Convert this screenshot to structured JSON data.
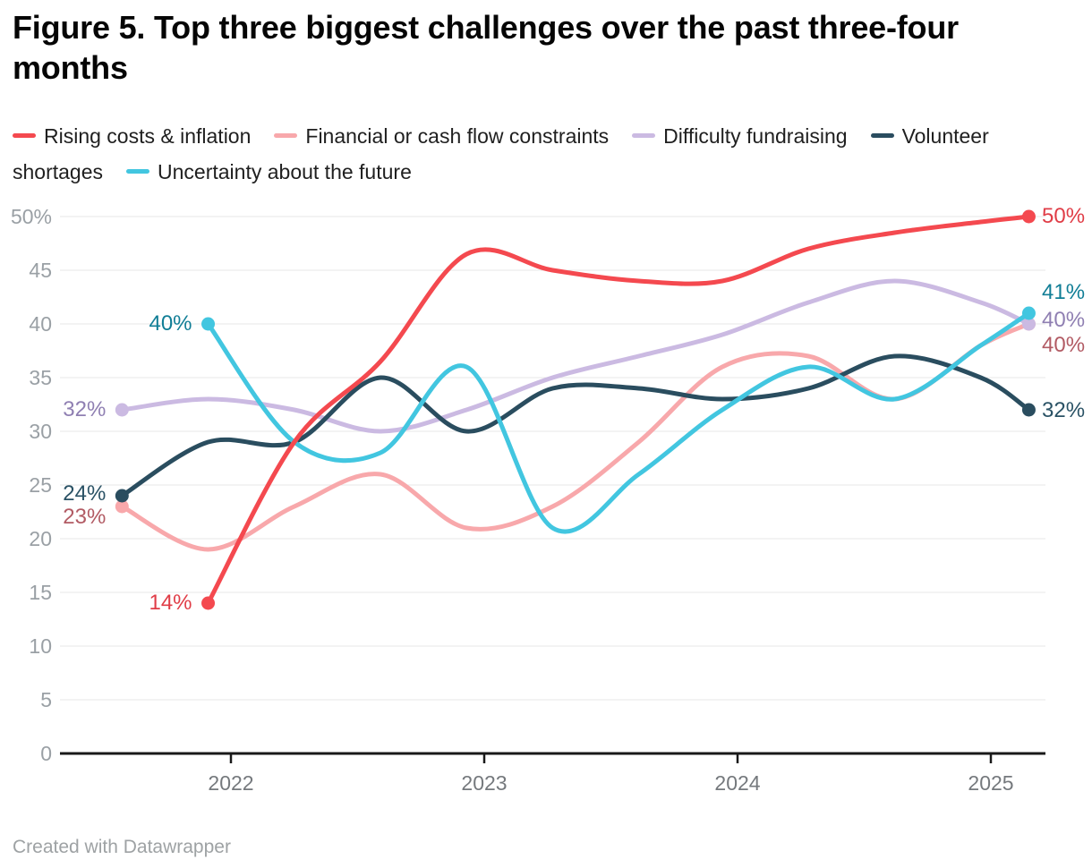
{
  "title": "Figure 5. Top three biggest challenges over the past three-four months",
  "attribution": "Created with Datawrapper",
  "legend": {
    "items": [
      {
        "id": "rising-costs",
        "label": "Rising costs & inflation",
        "color": "#f4494f"
      },
      {
        "id": "financial-constraints",
        "label": "Financial or cash flow constraints",
        "color": "#f8a8ab"
      },
      {
        "id": "difficulty-fundraising",
        "label": "Difficulty fundraising",
        "color": "#cbbae2"
      },
      {
        "id": "volunteer-shortages",
        "label": "Volunteer shortages",
        "color": "#2a4d5f"
      },
      {
        "id": "uncertainty-future",
        "label": "Uncertainty about the future",
        "color": "#42c6e0"
      }
    ]
  },
  "chart_data": {
    "type": "line",
    "title": "Figure 5. Top three biggest challenges over the past three-four months",
    "x_note": "x values are decimal years estimated from the axis; surveys roughly every 4 months",
    "x": [
      2021.57,
      2021.91,
      2022.25,
      2022.59,
      2022.93,
      2023.27,
      2023.61,
      2023.94,
      2024.28,
      2024.62,
      2024.96,
      2025.15
    ],
    "x_axis": {
      "ticks": [
        {
          "label": "2022",
          "value": 2022
        },
        {
          "label": "2023",
          "value": 2023
        },
        {
          "label": "2024",
          "value": 2024
        },
        {
          "label": "2025",
          "value": 2025
        }
      ]
    },
    "y_axis": {
      "min": 0,
      "max": 50,
      "ticks": [
        {
          "label": "50%",
          "value": 50
        },
        {
          "label": "45",
          "value": 45
        },
        {
          "label": "40",
          "value": 40
        },
        {
          "label": "35",
          "value": 35
        },
        {
          "label": "30",
          "value": 30
        },
        {
          "label": "25",
          "value": 25
        },
        {
          "label": "20",
          "value": 20
        },
        {
          "label": "15",
          "value": 15
        },
        {
          "label": "10",
          "value": 10
        },
        {
          "label": "5",
          "value": 5
        },
        {
          "label": "0",
          "value": 0
        }
      ]
    },
    "grid": "horizontal",
    "legend_position": "top",
    "series": [
      {
        "id": "rising-costs",
        "name": "Rising costs & inflation",
        "color": "#f4494f",
        "label_color": "#e03d47",
        "values": [
          null,
          14,
          29,
          36.5,
          46.5,
          45,
          44,
          44,
          47,
          48.5,
          49.5,
          50
        ],
        "start_label": "14%",
        "end_label": "50%"
      },
      {
        "id": "financial-constraints",
        "name": "Financial or cash flow constraints",
        "color": "#f8a8ab",
        "label_color": "#b25b64",
        "values": [
          23,
          19,
          23,
          26,
          21,
          23,
          29,
          36,
          37,
          33,
          38,
          40
        ],
        "start_label": "23%",
        "end_label": "40%"
      },
      {
        "id": "difficulty-fundraising",
        "name": "Difficulty fundraising",
        "color": "#cbbae2",
        "label_color": "#8f7fb2",
        "values": [
          32,
          33,
          32,
          30,
          32,
          35,
          37,
          39,
          42,
          44,
          42,
          40
        ],
        "start_label": "32%",
        "end_label": "40%"
      },
      {
        "id": "volunteer-shortages",
        "name": "Volunteer shortages",
        "color": "#2a4d5f",
        "label_color": "#2a5265",
        "values": [
          24,
          29,
          29,
          35,
          30,
          34,
          34,
          33,
          34,
          37,
          35,
          32
        ],
        "start_label": "24%",
        "end_label": "32%"
      },
      {
        "id": "uncertainty-future",
        "name": "Uncertainty about the future",
        "color": "#42c6e0",
        "label_color": "#117e96",
        "values": [
          null,
          40,
          29,
          28,
          36,
          21,
          26,
          32,
          36,
          33,
          38,
          41
        ],
        "start_label": "40%",
        "end_label": "41%"
      }
    ]
  }
}
